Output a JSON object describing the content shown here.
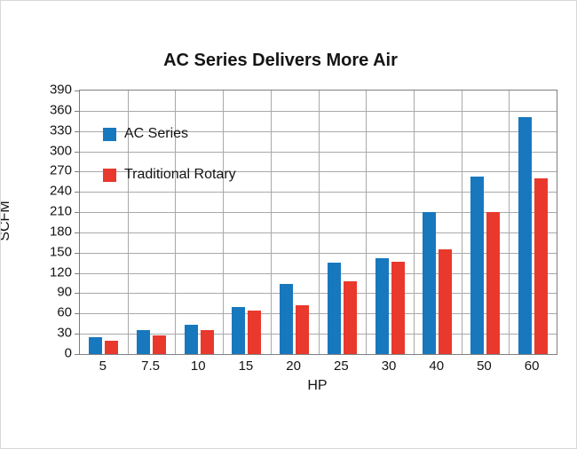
{
  "title": "AC Series Delivers More Air",
  "chart_data": {
    "type": "bar",
    "title": "AC Series Delivers More Air",
    "categories": [
      "5",
      "7.5",
      "10",
      "15",
      "20",
      "25",
      "30",
      "40",
      "50",
      "60"
    ],
    "series": [
      {
        "name": "AC Series",
        "color": "#1878be",
        "values": [
          25,
          35,
          43,
          70,
          104,
          135,
          142,
          210,
          263,
          350
        ]
      },
      {
        "name": "Traditional Rotary",
        "color": "#e8392c",
        "values": [
          20,
          28,
          36,
          64,
          72,
          108,
          137,
          155,
          210,
          260
        ]
      }
    ],
    "xlabel": "HP",
    "ylabel": "SCFM",
    "ylim": [
      0,
      390
    ],
    "ytick_step": 30,
    "grid": true,
    "legend_position": "top-left-inside",
    "colors": {
      "grid": "#a9a9a9",
      "border": "#7f7f7f",
      "text": "#141414"
    }
  }
}
